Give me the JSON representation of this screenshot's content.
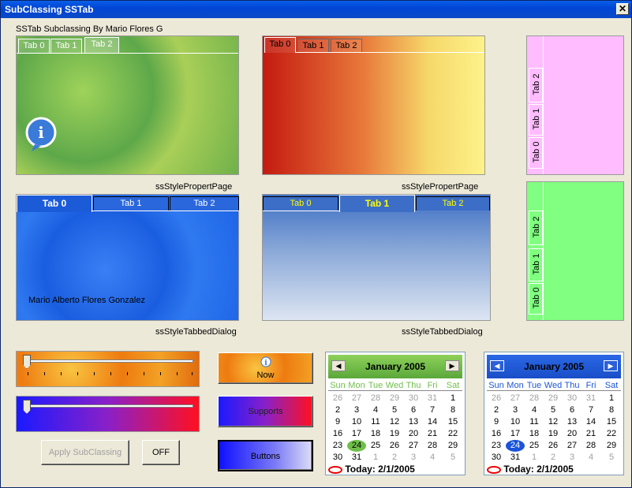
{
  "window": {
    "title": "SubClassing SSTab",
    "close_glyph": "✕"
  },
  "header_text": "SSTab Subclassing By Mario Flores G",
  "tabs_row1_left": {
    "tabs": [
      "Tab 0",
      "Tab 1",
      "Tab 2"
    ],
    "caption": "ssStylePropertPage"
  },
  "tabs_row1_mid": {
    "tabs": [
      "Tab 0",
      "Tab 1",
      "Tab 2"
    ],
    "caption": "ssStylePropertPage"
  },
  "tabs_right_pink": {
    "tabs": [
      "Tab 0",
      "Tab 1",
      "Tab 2"
    ]
  },
  "tabs_right_green": {
    "tabs": [
      "Tab 0",
      "Tab 1",
      "Tab 2"
    ]
  },
  "tabs_row2_left": {
    "tabs": [
      "Tab 0",
      "Tab 1",
      "Tab 2"
    ],
    "caption": "ssStyleTabbedDialog",
    "author": "Mario Alberto Flores Gonzalez"
  },
  "tabs_row2_mid": {
    "tabs": [
      "Tab 0",
      "Tab 1",
      "Tab 2"
    ],
    "caption": "ssStyleTabbedDialog"
  },
  "buttons": {
    "now": "Now",
    "supports": "Supports",
    "buttons": "Buttons",
    "apply": "Apply SubClassing",
    "off": "OFF"
  },
  "calendar": {
    "month": "January 2005",
    "days": [
      "Sun",
      "Mon",
      "Tue",
      "Wed",
      "Thu",
      "Fri",
      "Sat"
    ],
    "weeks": [
      [
        "26",
        "27",
        "28",
        "29",
        "30",
        "31",
        "1"
      ],
      [
        "2",
        "3",
        "4",
        "5",
        "6",
        "7",
        "8"
      ],
      [
        "9",
        "10",
        "11",
        "12",
        "13",
        "14",
        "15"
      ],
      [
        "16",
        "17",
        "18",
        "19",
        "20",
        "21",
        "22"
      ],
      [
        "23",
        "24",
        "25",
        "26",
        "27",
        "28",
        "29"
      ],
      [
        "30",
        "31",
        "1",
        "2",
        "3",
        "4",
        "5"
      ]
    ],
    "today": "Today: 2/1/2005",
    "selected_day": "24"
  },
  "colors": {
    "title_blue": "#0046d5",
    "cal1_head": "#6fbf4a",
    "cal2_head": "#1c54d8"
  }
}
